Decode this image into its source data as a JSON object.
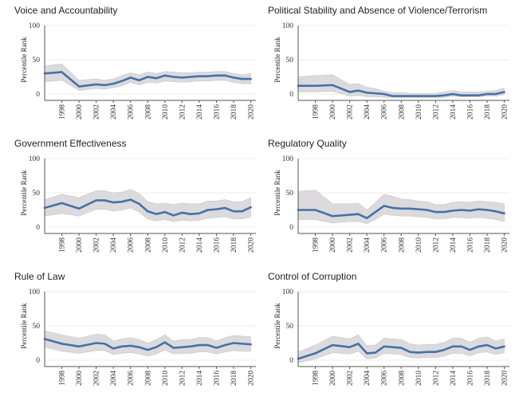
{
  "chart_data": [
    {
      "type": "line",
      "title": "Voice and Accountability",
      "ylabel": "Percentile Rank",
      "xlabel": "",
      "ylim": [
        0,
        100
      ],
      "yticks": [
        0,
        50,
        100
      ],
      "xticks": [
        "1998",
        "2000",
        "2002",
        "2004",
        "2006",
        "2008",
        "2010",
        "2012",
        "2014",
        "2016",
        "2018",
        "2020"
      ],
      "x": [
        1996,
        1998,
        2000,
        2002,
        2003,
        2004,
        2005,
        2006,
        2007,
        2008,
        2009,
        2010,
        2011,
        2012,
        2013,
        2014,
        2015,
        2016,
        2017,
        2018,
        2019,
        2020
      ],
      "series": [
        {
          "values": [
            30,
            32,
            11,
            14,
            13,
            15,
            19,
            24,
            20,
            25,
            23,
            27,
            25,
            24,
            25,
            26,
            26,
            27,
            27,
            24,
            22,
            22
          ]
        }
      ],
      "band_low": [
        18,
        20,
        5,
        8,
        7,
        9,
        12,
        17,
        13,
        17,
        16,
        19,
        18,
        17,
        18,
        19,
        19,
        20,
        20,
        17,
        15,
        15
      ],
      "band_high": [
        41,
        44,
        20,
        22,
        20,
        22,
        27,
        31,
        28,
        32,
        30,
        33,
        32,
        31,
        31,
        32,
        32,
        33,
        33,
        30,
        28,
        30
      ]
    },
    {
      "type": "line",
      "title": "Political Stability and Absence of Violence/Terrorism",
      "ylabel": "Percentile Rank",
      "xlabel": "",
      "ylim": [
        0,
        100
      ],
      "yticks": [
        0,
        50,
        100
      ],
      "xticks": [
        "1998",
        "2000",
        "2002",
        "2004",
        "2006",
        "2008",
        "2010",
        "2012",
        "2014",
        "2016",
        "2018",
        "2020"
      ],
      "x": [
        1996,
        1998,
        2000,
        2002,
        2003,
        2004,
        2005,
        2006,
        2007,
        2008,
        2009,
        2010,
        2011,
        2012,
        2013,
        2014,
        2015,
        2016,
        2017,
        2018,
        2019,
        2020
      ],
      "series": [
        {
          "values": [
            12,
            12,
            13,
            3,
            5,
            2,
            1,
            0,
            -3,
            -3,
            -3,
            -3,
            -3,
            -3,
            -2,
            0,
            -2,
            -2,
            -2,
            0,
            0,
            3
          ]
        }
      ],
      "band_low": [
        3,
        3,
        4,
        -3,
        -2,
        -4,
        -4,
        -5,
        -5,
        -5,
        -5,
        -5,
        -5,
        -5,
        -5,
        -3,
        -4,
        -4,
        -4,
        -3,
        -3,
        -1
      ],
      "band_high": [
        25,
        27,
        28,
        14,
        15,
        10,
        8,
        4,
        2,
        2,
        1,
        1,
        1,
        1,
        3,
        5,
        3,
        3,
        3,
        4,
        5,
        9
      ]
    },
    {
      "type": "line",
      "title": "Government Effectiveness",
      "ylabel": "Percentile Rank",
      "xlabel": "",
      "ylim": [
        0,
        100
      ],
      "yticks": [
        0,
        50,
        100
      ],
      "xticks": [
        "1998",
        "2000",
        "2002",
        "2004",
        "2006",
        "2008",
        "2010",
        "2012",
        "2014",
        "2016",
        "2018",
        "2020"
      ],
      "x": [
        1996,
        1998,
        2000,
        2002,
        2003,
        2004,
        2005,
        2006,
        2007,
        2008,
        2009,
        2010,
        2011,
        2012,
        2013,
        2014,
        2015,
        2016,
        2017,
        2018,
        2019,
        2020
      ],
      "series": [
        {
          "values": [
            28,
            35,
            27,
            39,
            39,
            36,
            37,
            40,
            34,
            23,
            19,
            22,
            17,
            21,
            19,
            20,
            25,
            26,
            28,
            23,
            23,
            29
          ]
        }
      ],
      "band_low": [
        16,
        20,
        16,
        26,
        26,
        23,
        25,
        28,
        22,
        12,
        9,
        11,
        8,
        10,
        9,
        10,
        13,
        14,
        15,
        12,
        12,
        15
      ],
      "band_high": [
        40,
        48,
        43,
        53,
        53,
        50,
        51,
        55,
        49,
        37,
        34,
        35,
        33,
        35,
        34,
        34,
        38,
        38,
        40,
        37,
        37,
        43
      ]
    },
    {
      "type": "line",
      "title": "Regulatory Quality",
      "ylabel": "Percentile Rank",
      "xlabel": "",
      "ylim": [
        0,
        100
      ],
      "yticks": [
        0,
        50,
        100
      ],
      "xticks": [
        "1998",
        "2000",
        "2002",
        "2004",
        "2006",
        "2008",
        "2010",
        "2012",
        "2014",
        "2016",
        "2018",
        "2020"
      ],
      "x": [
        1996,
        1998,
        2000,
        2002,
        2003,
        2004,
        2005,
        2006,
        2007,
        2008,
        2009,
        2010,
        2011,
        2012,
        2013,
        2014,
        2015,
        2016,
        2017,
        2018,
        2019,
        2020
      ],
      "series": [
        {
          "values": [
            25,
            25,
            16,
            18,
            19,
            13,
            22,
            31,
            28,
            27,
            27,
            26,
            25,
            22,
            22,
            24,
            25,
            24,
            26,
            25,
            23,
            20
          ]
        }
      ],
      "band_low": [
        11,
        11,
        6,
        8,
        8,
        5,
        11,
        19,
        17,
        16,
        16,
        15,
        14,
        12,
        12,
        14,
        14,
        13,
        14,
        13,
        11,
        8
      ],
      "band_high": [
        52,
        54,
        34,
        34,
        35,
        25,
        36,
        48,
        45,
        41,
        40,
        38,
        37,
        33,
        33,
        36,
        37,
        36,
        38,
        37,
        36,
        34
      ]
    },
    {
      "type": "line",
      "title": "Rule of Law",
      "ylabel": "Percentile Rank",
      "xlabel": "",
      "ylim": [
        0,
        100
      ],
      "yticks": [
        0,
        50,
        100
      ],
      "xticks": [
        "1998",
        "2000",
        "2002",
        "2004",
        "2006",
        "2008",
        "2010",
        "2012",
        "2014",
        "2016",
        "2018",
        "2020"
      ],
      "x": [
        1996,
        1998,
        2000,
        2002,
        2003,
        2004,
        2005,
        2006,
        2007,
        2008,
        2009,
        2010,
        2011,
        2012,
        2013,
        2014,
        2015,
        2016,
        2017,
        2018,
        2019,
        2020
      ],
      "series": [
        {
          "values": [
            31,
            24,
            20,
            25,
            24,
            17,
            20,
            21,
            19,
            15,
            19,
            26,
            18,
            19,
            20,
            22,
            22,
            18,
            22,
            25,
            24,
            23
          ]
        }
      ],
      "band_low": [
        19,
        13,
        10,
        14,
        14,
        8,
        10,
        11,
        9,
        6,
        9,
        15,
        9,
        10,
        10,
        12,
        12,
        9,
        12,
        14,
        13,
        13
      ],
      "band_high": [
        43,
        37,
        32,
        38,
        37,
        28,
        31,
        33,
        30,
        25,
        30,
        37,
        28,
        30,
        30,
        33,
        33,
        28,
        33,
        36,
        35,
        34
      ]
    },
    {
      "type": "line",
      "title": "Control of Corruption",
      "ylabel": "Percentile Rank",
      "xlabel": "",
      "ylim": [
        0,
        100
      ],
      "yticks": [
        0,
        50,
        100
      ],
      "xticks": [
        "1998",
        "2000",
        "2002",
        "2004",
        "2006",
        "2008",
        "2010",
        "2012",
        "2014",
        "2016",
        "2018",
        "2020"
      ],
      "x": [
        1996,
        1998,
        2000,
        2002,
        2003,
        2004,
        2005,
        2006,
        2007,
        2008,
        2009,
        2010,
        2011,
        2012,
        2013,
        2014,
        2015,
        2016,
        2017,
        2018,
        2019,
        2020
      ],
      "series": [
        {
          "values": [
            2,
            10,
            22,
            19,
            24,
            10,
            11,
            20,
            19,
            18,
            12,
            11,
            12,
            12,
            15,
            20,
            20,
            15,
            20,
            22,
            17,
            20
          ]
        }
      ],
      "band_low": [
        -4,
        2,
        11,
        9,
        13,
        2,
        3,
        10,
        9,
        8,
        4,
        3,
        4,
        4,
        6,
        10,
        10,
        6,
        11,
        12,
        8,
        11
      ],
      "band_high": [
        12,
        22,
        35,
        31,
        37,
        21,
        22,
        32,
        31,
        30,
        24,
        22,
        23,
        23,
        26,
        32,
        32,
        26,
        32,
        34,
        28,
        31
      ]
    }
  ],
  "colors": {
    "line": "#4472a8",
    "band": "#dcdadd",
    "band_stroke": "#c9c6ca",
    "grid": "#ececec",
    "axis": "#555555"
  }
}
